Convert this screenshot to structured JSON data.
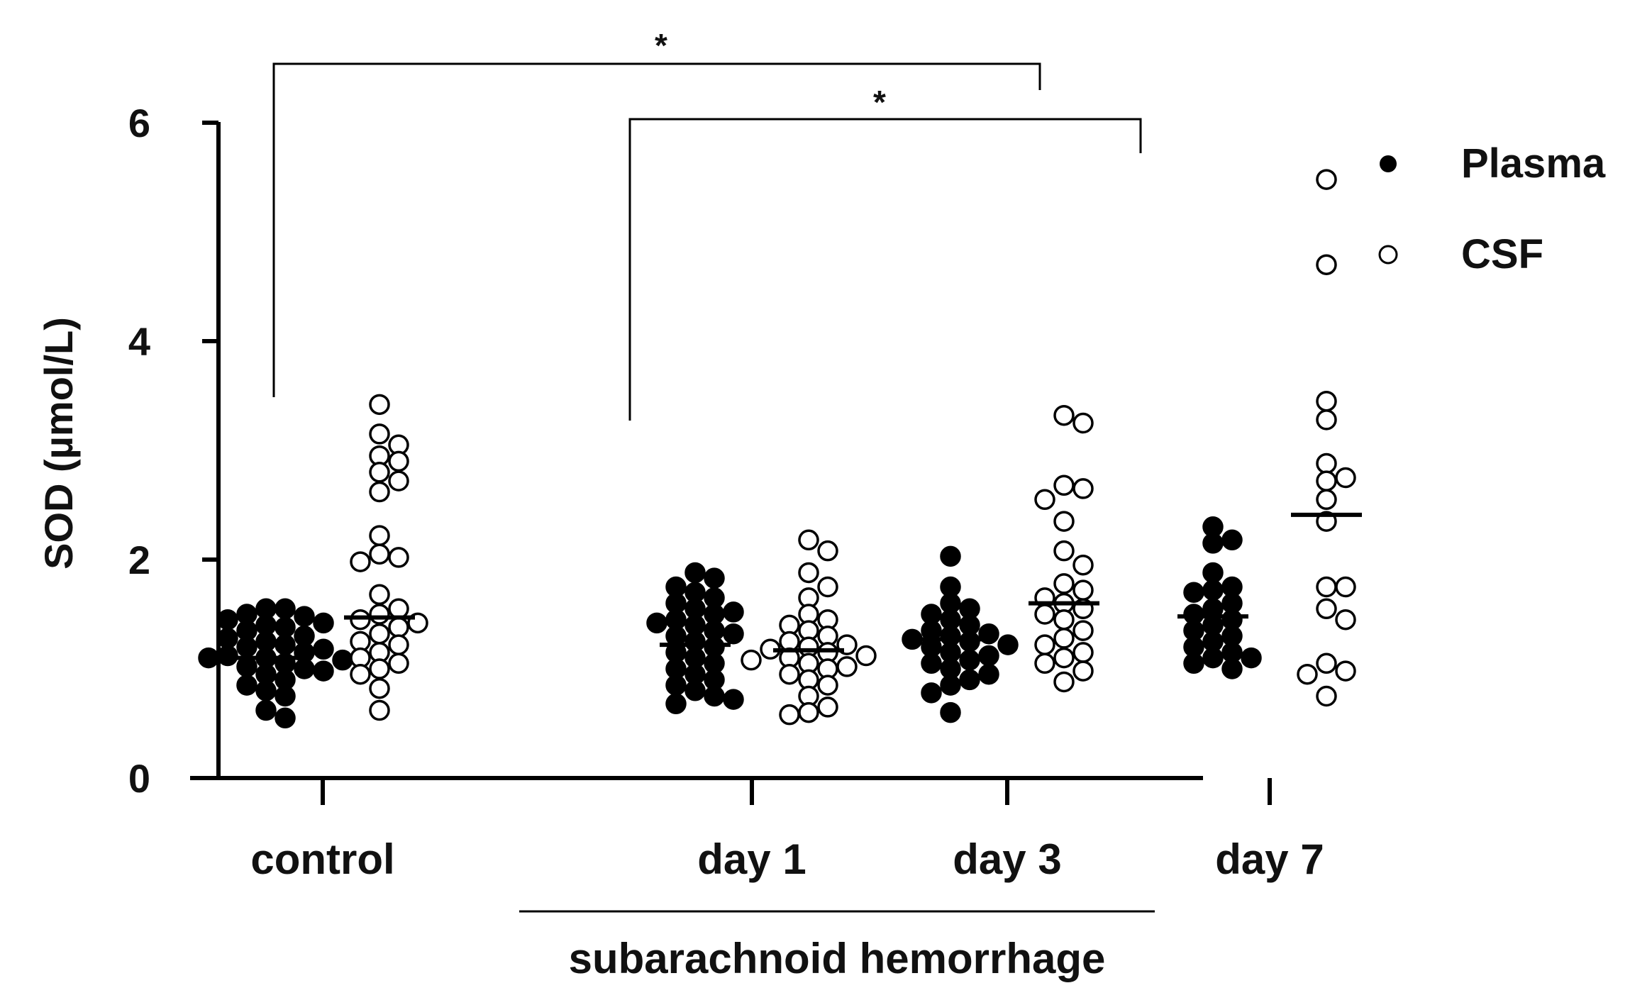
{
  "chart_data": {
    "type": "scatter",
    "ylabel": "SOD (µmol/L)",
    "ylim": [
      0,
      6
    ],
    "yticks": [
      "0",
      "2",
      "4",
      "6"
    ],
    "categories": [
      "control",
      "day 1",
      "day 3",
      "day 7"
    ],
    "group_label": "subarachnoid hemorrhage",
    "grid": false,
    "legend_position": "top-right",
    "significance": [
      {
        "from": "control",
        "to": "day 7",
        "label": "*"
      },
      {
        "from": "day 1",
        "to": "day 7",
        "label": "*"
      }
    ],
    "series": [
      {
        "name": "Plasma",
        "marker": "filled-circle",
        "color": "#000000",
        "means": [
          1.1,
          1.22,
          1.27,
          1.48
        ],
        "values": [
          [
            1.55,
            1.55,
            1.5,
            1.48,
            1.45,
            1.42,
            1.4,
            1.38,
            1.35,
            1.3,
            1.28,
            1.25,
            1.22,
            1.2,
            1.18,
            1.15,
            1.12,
            1.1,
            1.1,
            1.08,
            1.05,
            1.02,
            1.0,
            0.98,
            0.95,
            0.9,
            0.85,
            0.8,
            0.75,
            0.62,
            0.55
          ],
          [
            1.88,
            1.83,
            1.75,
            1.7,
            1.65,
            1.6,
            1.55,
            1.52,
            1.5,
            1.45,
            1.42,
            1.4,
            1.35,
            1.32,
            1.3,
            1.25,
            1.2,
            1.15,
            1.1,
            1.05,
            1.0,
            0.95,
            0.9,
            0.85,
            0.8,
            0.75,
            0.72,
            0.68
          ],
          [
            2.03,
            1.75,
            1.6,
            1.55,
            1.5,
            1.45,
            1.4,
            1.35,
            1.32,
            1.3,
            1.27,
            1.25,
            1.22,
            1.2,
            1.15,
            1.12,
            1.08,
            1.05,
            1.0,
            0.95,
            0.9,
            0.85,
            0.78,
            0.6
          ],
          [
            2.3,
            2.18,
            2.15,
            1.88,
            1.75,
            1.72,
            1.7,
            1.6,
            1.55,
            1.5,
            1.45,
            1.4,
            1.35,
            1.3,
            1.25,
            1.2,
            1.15,
            1.1,
            1.1,
            1.05,
            1.0
          ]
        ]
      },
      {
        "name": "CSF",
        "marker": "open-circle",
        "color": "#000000",
        "means": [
          1.47,
          1.17,
          1.6,
          2.41
        ],
        "values": [
          [
            3.42,
            3.15,
            3.05,
            2.95,
            2.9,
            2.8,
            2.72,
            2.62,
            2.22,
            2.05,
            2.02,
            1.98,
            1.68,
            1.55,
            1.5,
            1.45,
            1.42,
            1.38,
            1.32,
            1.25,
            1.22,
            1.15,
            1.1,
            1.05,
            1.0,
            0.95,
            0.82,
            0.62
          ],
          [
            2.18,
            2.08,
            1.88,
            1.75,
            1.65,
            1.5,
            1.45,
            1.4,
            1.35,
            1.3,
            1.25,
            1.22,
            1.2,
            1.18,
            1.15,
            1.12,
            1.1,
            1.08,
            1.05,
            1.02,
            1.0,
            0.95,
            0.9,
            0.85,
            0.75,
            0.65,
            0.6,
            0.58
          ],
          [
            3.32,
            3.25,
            2.68,
            2.65,
            2.55,
            2.35,
            2.08,
            1.95,
            1.78,
            1.72,
            1.65,
            1.6,
            1.55,
            1.5,
            1.45,
            1.35,
            1.28,
            1.22,
            1.15,
            1.1,
            1.05,
            0.98,
            0.88
          ],
          [
            5.48,
            4.7,
            3.45,
            3.28,
            2.88,
            2.75,
            2.72,
            2.55,
            2.35,
            1.75,
            1.75,
            1.55,
            1.45,
            1.05,
            0.98,
            0.95,
            0.75
          ]
        ]
      }
    ]
  }
}
